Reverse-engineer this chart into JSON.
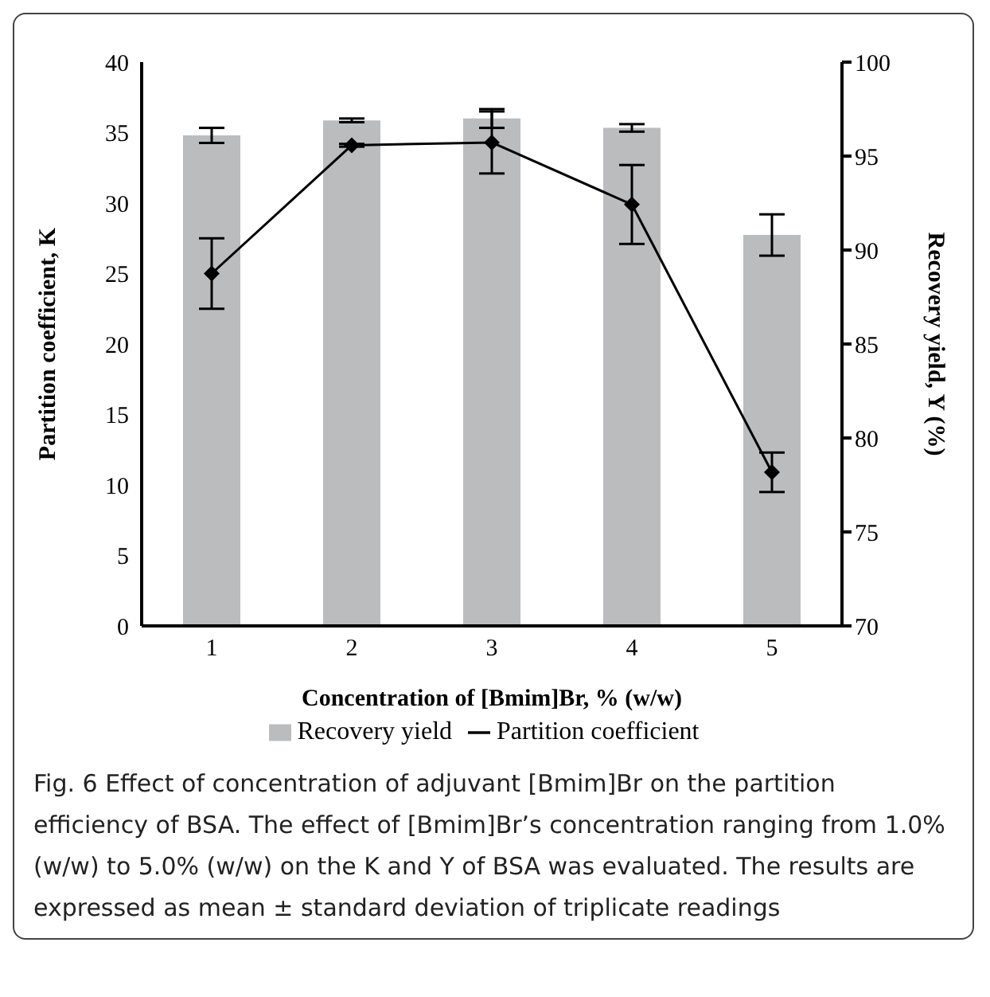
{
  "chart_data": {
    "type": "bar",
    "xlabel": "Concentration of [Bmim]Br, % (w/w)",
    "ylabel": "Partition coefficient, K",
    "y2label": "Recovery yield, Y (%)",
    "categories": [
      "1",
      "2",
      "3",
      "4",
      "5"
    ],
    "series": [
      {
        "name": "Recovery yield",
        "axis": "y2",
        "color": "#bbbcbe",
        "values": [
          96.1,
          96.9,
          97.0,
          96.5,
          90.8
        ],
        "errors": [
          0.4,
          0.1,
          0.5,
          0.2,
          1.1
        ]
      },
      {
        "name": "Partition coefficient",
        "type": "line",
        "color": "#000000",
        "marker": "diamond",
        "values": [
          25.0,
          34.1,
          34.3,
          29.9,
          10.9
        ],
        "errors": [
          2.5,
          0.1,
          2.2,
          2.8,
          1.4
        ]
      }
    ],
    "ylim": [
      0,
      40
    ],
    "yticks": [
      0,
      5,
      10,
      15,
      20,
      25,
      30,
      35,
      40
    ],
    "y2lim": [
      70,
      100
    ],
    "y2ticks": [
      70,
      75,
      80,
      85,
      90,
      95,
      100
    ],
    "grid": false,
    "legend": "bottom",
    "annotations": [
      "Fig. 6 Effect of concentration of adjuvant [Bmim]Br on the partition efficiency of BSA. The effect of [Bmim]Br’s concentration ranging from 1.0% (w/w) to 5.0% (w/w) on the K and Y of BSA was evaluated. The results are expressed as mean ± standard deviation of triplicate readings"
    ]
  }
}
